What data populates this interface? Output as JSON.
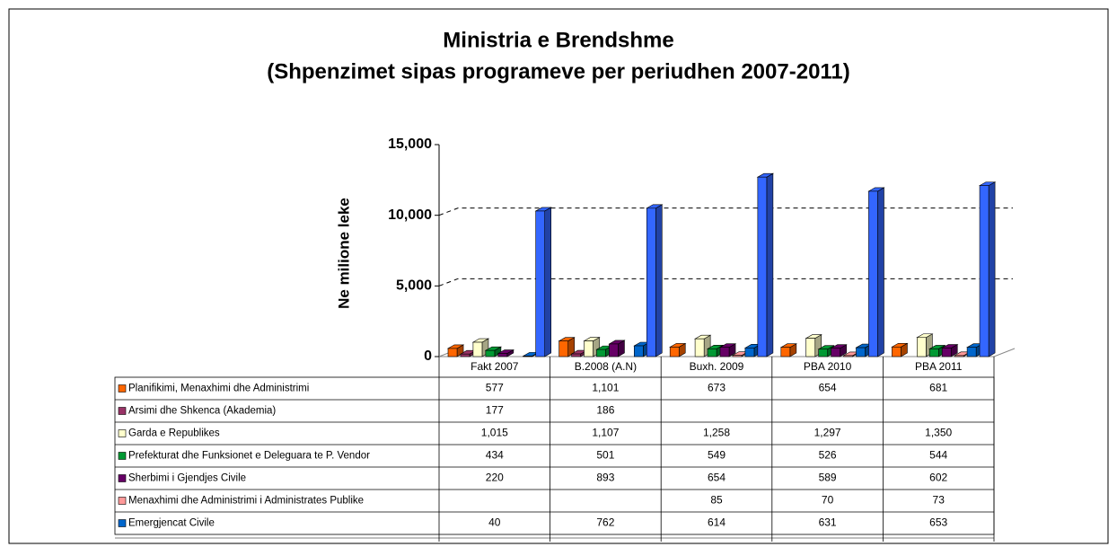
{
  "chart_data": {
    "type": "bar3d",
    "title": "Ministria e Brendshme",
    "subtitle": "(Shpenzimet sipas programeve per periudhen 2007-2011)",
    "y_label": "Ne milione leke",
    "categories": [
      "Fakt 2007",
      "B.2008 (A.N)",
      "Buxh. 2009",
      "PBA 2010",
      "PBA 2011"
    ],
    "ylim": [
      0,
      15000
    ],
    "yticks": [
      0,
      {
        "value": 5000,
        "label": "5,000"
      },
      {
        "value": 10000,
        "label": "10,000"
      },
      {
        "value": 15000,
        "label": "15,000"
      }
    ],
    "grid": true,
    "series": [
      {
        "name": "Planifikimi, Menaxhimi dhe Administrimi",
        "color": "#ff6600",
        "values": [
          577,
          1101,
          673,
          654,
          681
        ],
        "value_labels": [
          "577",
          "1,101",
          "673",
          "654",
          "681"
        ]
      },
      {
        "name": "Arsimi dhe Shkenca (Akademia)",
        "color": "#993366",
        "values": [
          177,
          186,
          null,
          null,
          null
        ],
        "value_labels": [
          "177",
          "186",
          null,
          null,
          null
        ]
      },
      {
        "name": "Garda e Republikes",
        "color": "#ffffcc",
        "values": [
          1015,
          1107,
          1258,
          1297,
          1350
        ],
        "value_labels": [
          "1,015",
          "1,107",
          "1,258",
          "1,297",
          "1,350"
        ]
      },
      {
        "name": "Prefekturat dhe Funksionet e Deleguara te P. Vendor",
        "color": "#009933",
        "values": [
          434,
          501,
          549,
          526,
          544
        ],
        "value_labels": [
          "434",
          "501",
          "549",
          "526",
          "544"
        ]
      },
      {
        "name": "Sherbimi i Gjendjes Civile",
        "color": "#660066",
        "values": [
          220,
          893,
          654,
          589,
          602
        ],
        "value_labels": [
          "220",
          "893",
          "654",
          "589",
          "602"
        ]
      },
      {
        "name": "Menaxhimi dhe Administrimi i Administrates Publike",
        "color": "#ff9999",
        "values": [
          null,
          null,
          85,
          70,
          73
        ],
        "value_labels": [
          null,
          null,
          "85",
          "70",
          "73"
        ]
      },
      {
        "name": "Emergjencat Civile",
        "color": "#0066cc",
        "values": [
          40,
          762,
          614,
          631,
          653
        ],
        "value_labels": [
          "40",
          "762",
          "614",
          "631",
          "653"
        ]
      },
      {
        "color": "#3366ff",
        "values": [
          10300,
          10500,
          12700,
          11700,
          12100
        ]
      }
    ]
  }
}
